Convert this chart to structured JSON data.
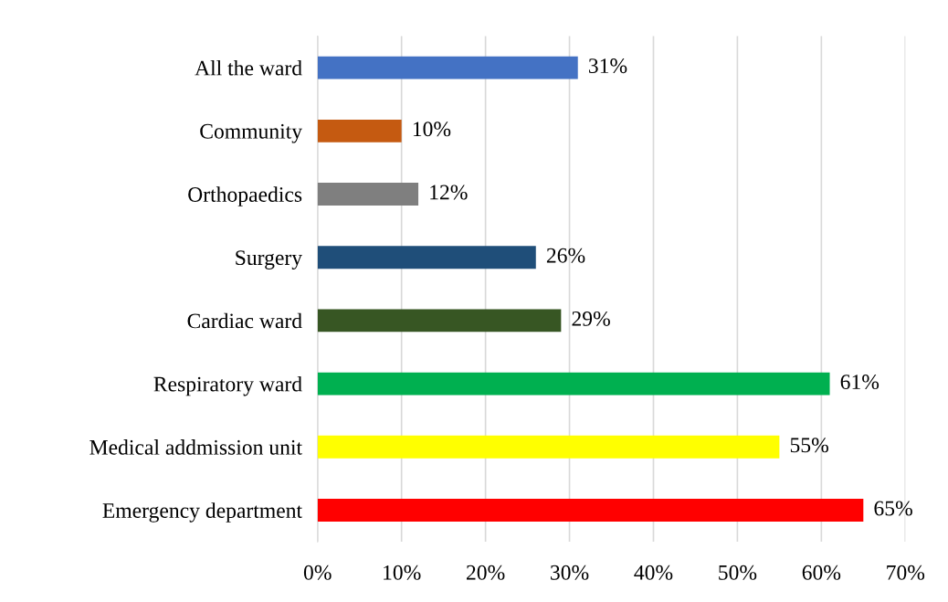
{
  "chart_data": {
    "type": "bar",
    "orientation": "horizontal",
    "categories": [
      "All the ward",
      "Community",
      "Orthopaedics",
      "Surgery",
      "Cardiac ward",
      "Respiratory ward",
      "Medical addmission unit",
      "Emergency department"
    ],
    "values": [
      31,
      10,
      12,
      26,
      29,
      61,
      55,
      65
    ],
    "colors": [
      "#4472c4",
      "#c55a11",
      "#7f7f7f",
      "#1f4e79",
      "#375623",
      "#00b050",
      "#ffff00",
      "#ff0000"
    ],
    "value_labels": [
      "31%",
      "10%",
      "12%",
      "26%",
      "29%",
      "61%",
      "55%",
      "65%"
    ],
    "xlim": [
      0,
      70
    ],
    "xticks": [
      {
        "value": 0,
        "label": "0%"
      },
      {
        "value": 10,
        "label": "10%"
      },
      {
        "value": 20,
        "label": "20%"
      },
      {
        "value": 30,
        "label": "30%"
      },
      {
        "value": 40,
        "label": "40%"
      },
      {
        "value": 50,
        "label": "50%"
      },
      {
        "value": 60,
        "label": "60%"
      },
      {
        "value": 70,
        "label": "70%"
      }
    ],
    "grid": "x",
    "legend": false
  }
}
